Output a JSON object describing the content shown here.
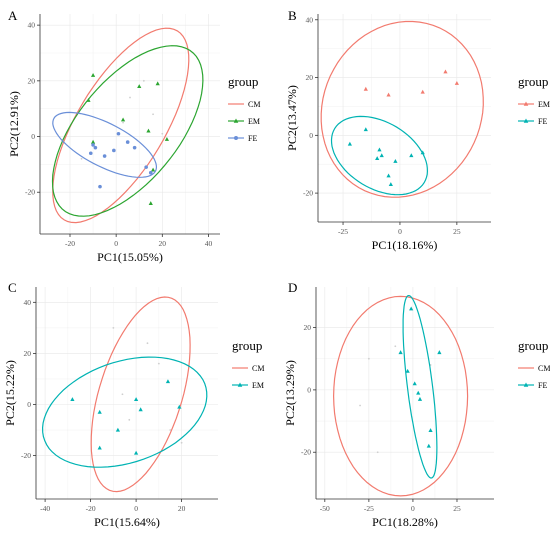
{
  "colors": {
    "CM": "#F27B6F",
    "EM": "#00B3B3",
    "FE": "#00B3B3",
    "EM_A": "#2BA530",
    "FE_A": "#6A8FD8",
    "grid": "#E8E8E8",
    "tick": "#555555"
  },
  "chart_data": [
    {
      "panel_label": "A",
      "type": "scatter",
      "xlabel": "PC1(15.05%)",
      "ylabel": "PC2(12.91%)",
      "xlim": [
        -33,
        45
      ],
      "ylim": [
        -35,
        44
      ],
      "xticks": [
        -20,
        0,
        20,
        40
      ],
      "yticks": [
        -20,
        0,
        20,
        40
      ],
      "legend": {
        "title": "group",
        "position": "right"
      },
      "series": [
        {
          "name": "CM",
          "color": "#F27B6F",
          "points": [
            [
              -15,
              -8
            ],
            [
              3,
              5
            ],
            [
              6,
              14
            ],
            [
              12,
              20
            ],
            [
              16,
              8
            ],
            [
              20,
              1
            ]
          ],
          "ellipse": {
            "cx": 2,
            "cy": 4,
            "rx": 42,
            "ry": 18,
            "angle_deg": 52
          }
        },
        {
          "name": "EM",
          "color": "#2BA530",
          "points": [
            [
              -10,
              22
            ],
            [
              -12,
              13
            ],
            [
              3,
              6
            ],
            [
              10,
              18
            ],
            [
              14,
              2
            ],
            [
              16,
              -12
            ],
            [
              18,
              19
            ],
            [
              22,
              -1
            ],
            [
              15,
              -24
            ],
            [
              -10,
              -2
            ]
          ],
          "ellipse": {
            "cx": 5,
            "cy": 2,
            "rx": 40,
            "ry": 20,
            "angle_deg": 42
          }
        },
        {
          "name": "FE",
          "color": "#6A8FD8",
          "points": [
            [
              -10,
              -3
            ],
            [
              -11,
              -6
            ],
            [
              -9,
              -4
            ],
            [
              -5,
              -7
            ],
            [
              -1,
              -5
            ],
            [
              1,
              1
            ],
            [
              5,
              -2
            ],
            [
              8,
              -4
            ],
            [
              13,
              -11
            ],
            [
              15,
              -13
            ],
            [
              -7,
              -18
            ]
          ],
          "ellipse": {
            "cx": -5,
            "cy": -3,
            "rx": 24,
            "ry": 8,
            "angle_deg": -22
          }
        }
      ]
    },
    {
      "panel_label": "B",
      "type": "scatter",
      "xlabel": "PC1(18.16%)",
      "ylabel": "PC2(13.47%)",
      "xlim": [
        -36,
        40
      ],
      "ylim": [
        -30,
        42
      ],
      "xticks": [
        -25,
        0,
        25
      ],
      "yticks": [
        -20,
        0,
        20,
        40
      ],
      "legend": {
        "title": "group",
        "position": "right"
      },
      "series": [
        {
          "name": "EM",
          "color": "#F27B6F",
          "points": [
            [
              -15,
              16
            ],
            [
              -5,
              14
            ],
            [
              10,
              15
            ],
            [
              20,
              22
            ],
            [
              25,
              18
            ]
          ],
          "ellipse": {
            "cx": 1,
            "cy": 9,
            "rx": 36,
            "ry": 30,
            "angle_deg": 15
          }
        },
        {
          "name": "FE",
          "color": "#00B3B3",
          "points": [
            [
              -22,
              -3
            ],
            [
              -15,
              2
            ],
            [
              -9,
              -5
            ],
            [
              -8,
              -7
            ],
            [
              -10,
              -8
            ],
            [
              -2,
              -9
            ],
            [
              5,
              -7
            ],
            [
              10,
              -6
            ],
            [
              -5,
              -14
            ],
            [
              -4,
              -17
            ]
          ],
          "ellipse": {
            "cx": -9,
            "cy": -7,
            "rx": 22,
            "ry": 12,
            "angle_deg": -20
          }
        }
      ]
    },
    {
      "panel_label": "C",
      "type": "scatter",
      "xlabel": "PC1(15.64%)",
      "ylabel": "PC2(15.22%)",
      "xlim": [
        -44,
        36
      ],
      "ylim": [
        -37,
        46
      ],
      "xticks": [
        -40,
        -20,
        0,
        20
      ],
      "yticks": [
        -20,
        0,
        20,
        40
      ],
      "legend": {
        "title": "group",
        "position": "right"
      },
      "series": [
        {
          "name": "CM",
          "color": "#F27B6F",
          "points": [
            [
              -10,
              30
            ],
            [
              5,
              24
            ],
            [
              10,
              16
            ],
            [
              -6,
              4
            ],
            [
              -3,
              -6
            ],
            [
              15,
              -10
            ],
            [
              20,
              -15
            ]
          ],
          "ellipse": {
            "cx": 2,
            "cy": 4,
            "rx": 40,
            "ry": 18,
            "angle_deg": 70
          }
        },
        {
          "name": "EM",
          "color": "#00B3B3",
          "points": [
            [
              -28,
              2
            ],
            [
              -16,
              -3
            ],
            [
              -16,
              -17
            ],
            [
              -8,
              -10
            ],
            [
              0,
              2
            ],
            [
              2,
              -2
            ],
            [
              0,
              -19
            ],
            [
              14,
              9
            ],
            [
              19,
              -1
            ]
          ],
          "ellipse": {
            "cx": -5,
            "cy": -3,
            "rx": 37,
            "ry": 20,
            "angle_deg": 15
          }
        }
      ]
    },
    {
      "panel_label": "D",
      "type": "scatter",
      "xlabel": "PC1(18.28%)",
      "ylabel": "PC2(13.29%)",
      "xlim": [
        -55,
        46
      ],
      "ylim": [
        -35,
        33
      ],
      "xticks": [
        -50,
        -25,
        0,
        25
      ],
      "yticks": [
        -20,
        0,
        20
      ],
      "legend": {
        "title": "group",
        "position": "right"
      },
      "series": [
        {
          "name": "CM",
          "color": "#F27B6F",
          "points": [
            [
              -30,
              -5
            ],
            [
              -20,
              -20
            ],
            [
              -25,
              10
            ],
            [
              -10,
              14
            ],
            [
              10,
              8
            ]
          ],
          "ellipse": {
            "cx": -7,
            "cy": -2,
            "rx": 38,
            "ry": 32,
            "angle_deg": 0
          }
        },
        {
          "name": "FE",
          "color": "#00B3B3",
          "points": [
            [
              -1,
              26
            ],
            [
              -7,
              12
            ],
            [
              -3,
              6
            ],
            [
              1,
              2
            ],
            [
              3,
              -1
            ],
            [
              4,
              -3
            ],
            [
              10,
              -13
            ],
            [
              9,
              -18
            ],
            [
              15,
              12
            ]
          ],
          "ellipse": {
            "cx": 4,
            "cy": 1,
            "rx": 30,
            "ry": 7,
            "angle_deg": -77
          }
        }
      ]
    }
  ]
}
